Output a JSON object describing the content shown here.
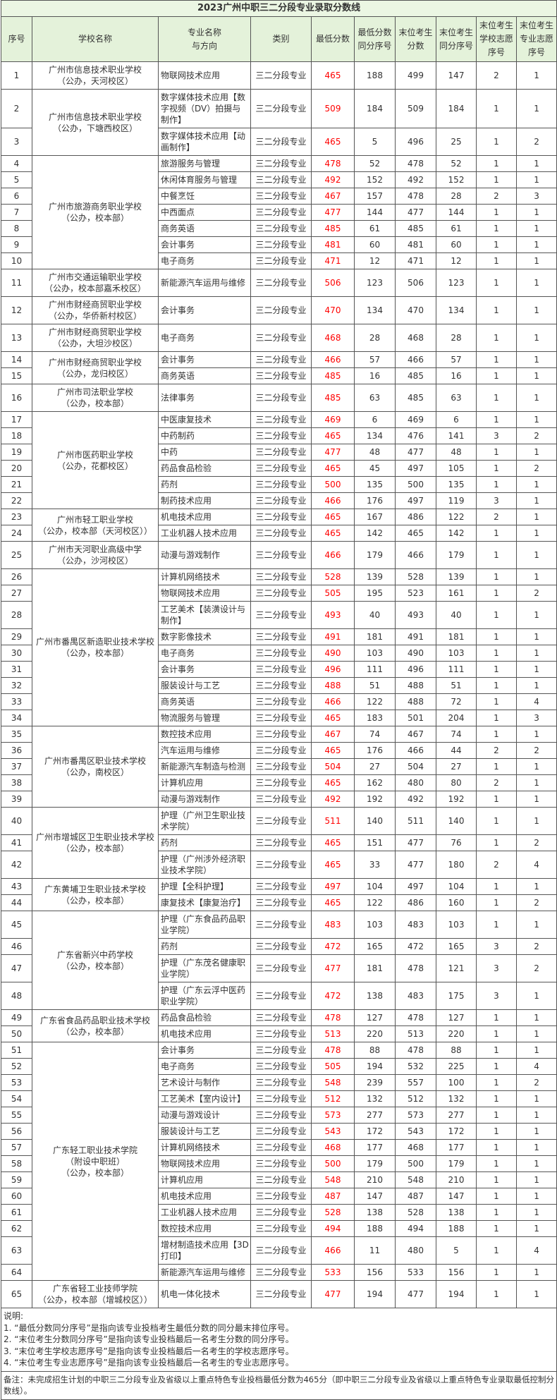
{
  "title": "2023广州中职三二分段专业录取分数线",
  "headers": [
    "序号",
    "学校名称",
    "专业名称与方向",
    "类别",
    "最低分数",
    "最低分数同分序号",
    "末位考生分数",
    "末位考生同分序号",
    "末位考生学校志愿序号",
    "末位考生专业志愿序号"
  ],
  "colors": {
    "header_bg": "#e4f2da",
    "min_score": "#ff0000",
    "border": "#555555"
  },
  "schools": [
    {
      "name": [
        "广州市信息技术职业学校",
        "（公办，天河校区）"
      ],
      "rows": [
        [
          "1",
          "物联网技术应用",
          "三二分段专业",
          "465",
          "188",
          "499",
          "147",
          "2",
          "1"
        ]
      ]
    },
    {
      "name": [
        "广州市信息技术职业学校",
        "（公办，下塘西校区）"
      ],
      "rows": [
        [
          "2",
          "数字媒体技术应用【数字视频（DV）拍摄与制作】",
          "三二分段专业",
          "509",
          "184",
          "509",
          "184",
          "1",
          "1"
        ],
        [
          "3",
          "数字媒体技术应用【动画制作】",
          "三二分段专业",
          "465",
          "5",
          "496",
          "25",
          "1",
          "2"
        ]
      ]
    },
    {
      "name": [
        "广州市旅游商务职业学校",
        "（公办，校本部）"
      ],
      "rows": [
        [
          "4",
          "旅游服务与管理",
          "三二分段专业",
          "478",
          "52",
          "478",
          "52",
          "1",
          "1"
        ],
        [
          "5",
          "休闲体育服务与管理",
          "三二分段专业",
          "492",
          "152",
          "492",
          "152",
          "1",
          "1"
        ],
        [
          "6",
          "中餐烹饪",
          "三二分段专业",
          "467",
          "157",
          "478",
          "28",
          "2",
          "3"
        ],
        [
          "7",
          "中西面点",
          "三二分段专业",
          "477",
          "144",
          "477",
          "144",
          "1",
          "1"
        ],
        [
          "8",
          "商务英语",
          "三二分段专业",
          "485",
          "61",
          "485",
          "61",
          "1",
          "1"
        ],
        [
          "9",
          "会计事务",
          "三二分段专业",
          "481",
          "60",
          "481",
          "60",
          "1",
          "1"
        ],
        [
          "10",
          "电子商务",
          "三二分段专业",
          "471",
          "12",
          "471",
          "12",
          "1",
          "1"
        ]
      ]
    },
    {
      "name": [
        "广州市交通运输职业学校",
        "（公办，校本部嘉禾校区）"
      ],
      "rows": [
        [
          "11",
          "新能源汽车运用与维修",
          "三二分段专业",
          "506",
          "123",
          "506",
          "123",
          "1",
          "1"
        ]
      ]
    },
    {
      "name": [
        "广州市财经商贸职业学校",
        "（公办，华侨新村校区）"
      ],
      "rows": [
        [
          "12",
          "会计事务",
          "三二分段专业",
          "470",
          "134",
          "470",
          "134",
          "1",
          "1"
        ]
      ]
    },
    {
      "name": [
        "广州市财经商贸职业学校",
        "（公办，大坦沙校区）"
      ],
      "rows": [
        [
          "13",
          "电子商务",
          "三二分段专业",
          "468",
          "28",
          "468",
          "28",
          "1",
          "1"
        ]
      ]
    },
    {
      "name": [
        "广州市财经商贸职业学校",
        "（公办，龙归校区）"
      ],
      "rows": [
        [
          "14",
          "会计事务",
          "三二分段专业",
          "466",
          "57",
          "466",
          "57",
          "1",
          "1"
        ],
        [
          "15",
          "商务英语",
          "三二分段专业",
          "485",
          "16",
          "485",
          "16",
          "1",
          "1"
        ]
      ]
    },
    {
      "name": [
        "广州市司法职业学校",
        "（公办，校本部）"
      ],
      "rows": [
        [
          "16",
          "法律事务",
          "三二分段专业",
          "485",
          "63",
          "485",
          "63",
          "1",
          "1"
        ]
      ]
    },
    {
      "name": [
        "广州市医药职业学校",
        "（公办，花都校区）"
      ],
      "rows": [
        [
          "17",
          "中医康复技术",
          "三二分段专业",
          "469",
          "6",
          "469",
          "6",
          "1",
          "1"
        ],
        [
          "18",
          "中药制药",
          "三二分段专业",
          "465",
          "134",
          "476",
          "141",
          "3",
          "2"
        ],
        [
          "19",
          "中药",
          "三二分段专业",
          "477",
          "48",
          "477",
          "48",
          "1",
          "1"
        ],
        [
          "20",
          "药品食品检验",
          "三二分段专业",
          "465",
          "45",
          "497",
          "105",
          "1",
          "2"
        ],
        [
          "21",
          "药剂",
          "三二分段专业",
          "500",
          "135",
          "500",
          "135",
          "1",
          "1"
        ],
        [
          "22",
          "制药技术应用",
          "三二分段专业",
          "466",
          "176",
          "497",
          "119",
          "3",
          "1"
        ]
      ]
    },
    {
      "name": [
        "广州市轻工职业学校",
        "（公办，校本部（天河校区））"
      ],
      "rows": [
        [
          "23",
          "机电技术应用",
          "三二分段专业",
          "465",
          "167",
          "486",
          "122",
          "2",
          "1"
        ],
        [
          "24",
          "工业机器人技术应用",
          "三二分段专业",
          "465",
          "142",
          "465",
          "142",
          "1",
          "1"
        ]
      ]
    },
    {
      "name": [
        "广州市天河职业高级中学",
        "（公办，沙河校区）"
      ],
      "rows": [
        [
          "25",
          "动漫与游戏制作",
          "三二分段专业",
          "466",
          "179",
          "466",
          "179",
          "1",
          "1"
        ]
      ]
    },
    {
      "name": [
        "广州市番禺区新造职业技术学校",
        "（公办，校本部）"
      ],
      "rows": [
        [
          "26",
          "计算机网络技术",
          "三二分段专业",
          "528",
          "139",
          "528",
          "139",
          "1",
          "1"
        ],
        [
          "27",
          "物联网技术应用",
          "三二分段专业",
          "505",
          "195",
          "523",
          "161",
          "1",
          "2"
        ],
        [
          "28",
          "工艺美术【装潢设计与制作】",
          "三二分段专业",
          "493",
          "40",
          "493",
          "40",
          "1",
          "1"
        ],
        [
          "29",
          "数字影像技术",
          "三二分段专业",
          "491",
          "181",
          "491",
          "181",
          "1",
          "1"
        ],
        [
          "30",
          "电子商务",
          "三二分段专业",
          "490",
          "103",
          "490",
          "103",
          "1",
          "1"
        ],
        [
          "31",
          "会计事务",
          "三二分段专业",
          "496",
          "111",
          "496",
          "111",
          "1",
          "1"
        ],
        [
          "32",
          "服装设计与工艺",
          "三二分段专业",
          "488",
          "51",
          "488",
          "51",
          "1",
          "1"
        ],
        [
          "33",
          "商务英语",
          "三二分段专业",
          "466",
          "122",
          "488",
          "72",
          "1",
          "4"
        ],
        [
          "34",
          "物流服务与管理",
          "三二分段专业",
          "465",
          "183",
          "501",
          "204",
          "1",
          "3"
        ]
      ]
    },
    {
      "name": [
        "广州市番禺区职业技术学校",
        "（公办，南校区）"
      ],
      "rows": [
        [
          "35",
          "数控技术应用",
          "三二分段专业",
          "467",
          "74",
          "467",
          "74",
          "1",
          "1"
        ],
        [
          "36",
          "汽车运用与维修",
          "三二分段专业",
          "465",
          "176",
          "466",
          "44",
          "2",
          "2"
        ],
        [
          "37",
          "新能源汽车制造与检测",
          "三二分段专业",
          "504",
          "27",
          "504",
          "27",
          "1",
          "1"
        ],
        [
          "38",
          "计算机应用",
          "三二分段专业",
          "465",
          "162",
          "480",
          "80",
          "2",
          "1"
        ],
        [
          "39",
          "动漫与游戏制作",
          "三二分段专业",
          "492",
          "192",
          "492",
          "192",
          "1",
          "1"
        ]
      ]
    },
    {
      "name": [
        "广州市增城区卫生职业技术学校",
        "（公办，校本部）"
      ],
      "rows": [
        [
          "40",
          "护理（广州卫生职业技术学院）",
          "三二分段专业",
          "511",
          "140",
          "511",
          "140",
          "1",
          "1"
        ],
        [
          "41",
          "药剂",
          "三二分段专业",
          "465",
          "151",
          "477",
          "76",
          "1",
          "2"
        ],
        [
          "42",
          "护理（广州涉外经济职业技术学院）",
          "三二分段专业",
          "465",
          "33",
          "477",
          "180",
          "2",
          "4"
        ]
      ]
    },
    {
      "name": [
        "广东黄埔卫生职业技术学校",
        "（公办，校本部）"
      ],
      "rows": [
        [
          "43",
          "护理【全科护理】",
          "三二分段专业",
          "497",
          "104",
          "497",
          "104",
          "1",
          "1"
        ],
        [
          "44",
          "康复技术【康复治疗】",
          "三二分段专业",
          "465",
          "122",
          "486",
          "160",
          "1",
          "2"
        ]
      ]
    },
    {
      "name": [
        "广东省新兴中药学校",
        "（公办，校本部）"
      ],
      "rows": [
        [
          "45",
          "护理（广东食品药品职业学院）",
          "三二分段专业",
          "483",
          "103",
          "483",
          "103",
          "1",
          "1"
        ],
        [
          "46",
          "药剂",
          "三二分段专业",
          "472",
          "165",
          "472",
          "165",
          "3",
          "2"
        ],
        [
          "47",
          "护理（广东茂名健康职业学院）",
          "三二分段专业",
          "477",
          "181",
          "478",
          "121",
          "3",
          "2"
        ],
        [
          "48",
          "护理（广东云浮中医药职业学院）",
          "三二分段专业",
          "472",
          "138",
          "483",
          "175",
          "3",
          "1"
        ]
      ]
    },
    {
      "name": [
        "广东省食品药品职业技术学校",
        "（公办，校本部）"
      ],
      "rows": [
        [
          "49",
          "药品食品检验",
          "三二分段专业",
          "478",
          "127",
          "478",
          "127",
          "1",
          "1"
        ],
        [
          "50",
          "机电技术应用",
          "三二分段专业",
          "513",
          "220",
          "513",
          "220",
          "1",
          "1"
        ]
      ]
    },
    {
      "name": [
        "广东轻工职业技术学院",
        "（附设中职班）",
        "（公办，校本部）"
      ],
      "rows": [
        [
          "51",
          "会计事务",
          "三二分段专业",
          "478",
          "88",
          "478",
          "88",
          "1",
          "1"
        ],
        [
          "52",
          "电子商务",
          "三二分段专业",
          "505",
          "194",
          "532",
          "225",
          "1",
          "4"
        ],
        [
          "53",
          "艺术设计与制作",
          "三二分段专业",
          "548",
          "239",
          "557",
          "100",
          "1",
          "2"
        ],
        [
          "54",
          "工艺美术【室内设计】",
          "三二分段专业",
          "512",
          "132",
          "512",
          "132",
          "1",
          "1"
        ],
        [
          "55",
          "动漫与游戏设计",
          "三二分段专业",
          "573",
          "277",
          "573",
          "277",
          "1",
          "1"
        ],
        [
          "56",
          "服装设计与工艺",
          "三二分段专业",
          "543",
          "172",
          "543",
          "172",
          "1",
          "1"
        ],
        [
          "57",
          "计算机网络技术",
          "三二分段专业",
          "468",
          "177",
          "468",
          "177",
          "1",
          "1"
        ],
        [
          "58",
          "物联网技术应用",
          "三二分段专业",
          "500",
          "179",
          "500",
          "179",
          "1",
          "1"
        ],
        [
          "59",
          "计算机应用",
          "三二分段专业",
          "548",
          "210",
          "548",
          "210",
          "1",
          "1"
        ],
        [
          "60",
          "机电技术应用",
          "三二分段专业",
          "487",
          "147",
          "487",
          "147",
          "1",
          "1"
        ],
        [
          "61",
          "工业机器人技术应用",
          "三二分段专业",
          "528",
          "138",
          "528",
          "138",
          "1",
          "1"
        ],
        [
          "62",
          "数控技术应用",
          "三二分段专业",
          "494",
          "188",
          "494",
          "188",
          "1",
          "1"
        ],
        [
          "63",
          "增材制造技术应用【3D打印】",
          "三二分段专业",
          "466",
          "11",
          "480",
          "5",
          "1",
          "4"
        ],
        [
          "64",
          "新能源汽车运用与维修",
          "三二分段专业",
          "533",
          "156",
          "533",
          "156",
          "1",
          "1"
        ]
      ]
    },
    {
      "name": [
        "广东省轻工业技师学院",
        "（公办，校本部（增城校区））"
      ],
      "rows": [
        [
          "65",
          "机电一体化技术",
          "三二分段专业",
          "477",
          "194",
          "477",
          "194",
          "1",
          "1"
        ]
      ]
    }
  ],
  "notes": [
    "说明:",
    "1. “最低分数同分序号”是指向该专业投档考生最低分数的同分最末排位序号。",
    "2. “末位考生分数同分序号”是指向该专业投档最后一名考生分数的同分序号。",
    "3. “末位考生学校志愿序号”是指向该专业投档最后一名考生的学校志愿序号。",
    "4. “末位考生专业志愿序号”是指向该专业投档最后一名考生的专业志愿序号。"
  ],
  "remark": "备注：未完成招生计划的中职三二分段专业及省级以上重点特色专业投档最低分数为465分（即中职三二分段专业及省级以上重点特色专业录取最低控制分数线）。"
}
